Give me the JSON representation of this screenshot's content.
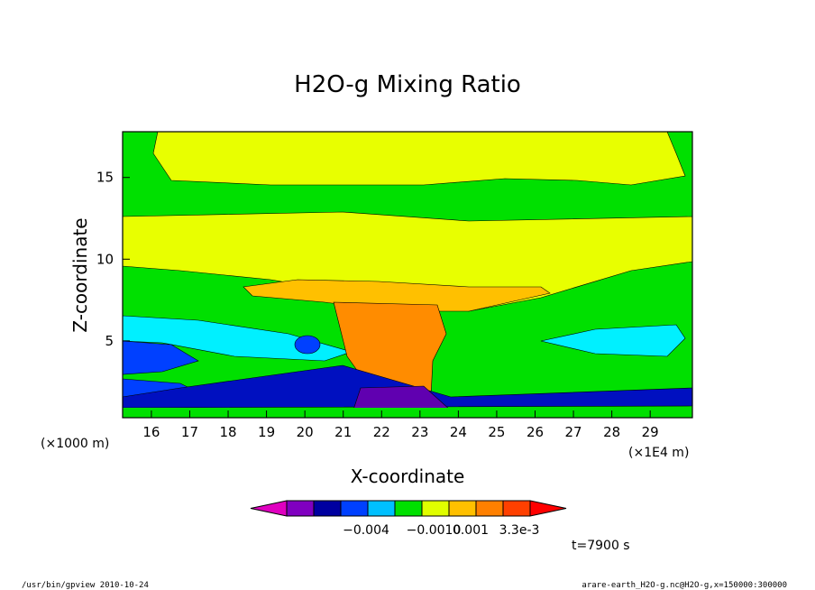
{
  "chart_data": {
    "type": "contour",
    "title": "H2O-g Mixing Ratio",
    "xlabel": "X-coordinate",
    "ylabel": "Z-coordinate",
    "xunits_left": "(×1000 m)",
    "xunits_right": "(×1E4 m)",
    "xlim": [
      15.25,
      30.1
    ],
    "ylim": [
      0.3,
      17.8
    ],
    "xticks": [
      16,
      17,
      18,
      19,
      20,
      21,
      22,
      23,
      24,
      25,
      26,
      27,
      28,
      29
    ],
    "yticks": [
      5,
      10,
      15
    ],
    "colorbar": {
      "colors": [
        "#e000c0",
        "#8000c0",
        "#0000a0",
        "#0040ff",
        "#00c0ff",
        "#00e000",
        "#e0ff00",
        "#ffc000",
        "#ff8000",
        "#ff4000",
        "#ff0000"
      ],
      "labels": [
        "−0.004",
        "−0.0010",
        "0.001",
        "3.3e-3"
      ]
    },
    "time_label": "t=7900 s"
  },
  "footer": {
    "left": "/usr/bin/gpview  2010-10-24",
    "right": "arare-earth_H2O-g.nc@H2O-g,x=150000:300000"
  }
}
